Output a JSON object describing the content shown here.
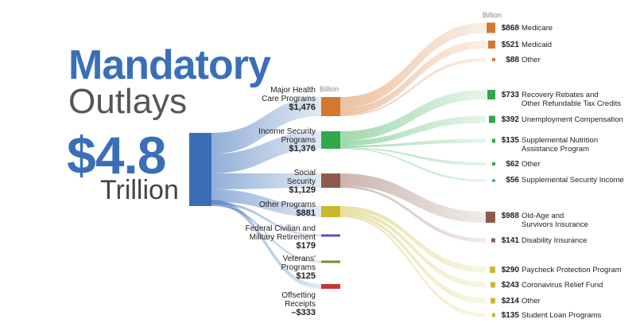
{
  "header": {
    "title_line1": "Mandatory",
    "title_line2": "Outlays",
    "total_value": "$4.8",
    "total_unit": "Trillion"
  },
  "unit_labels": {
    "middle": "Billion",
    "right": "Billion"
  },
  "colors": {
    "primary_blue": "#3a6fb8",
    "health": "#d5772e",
    "income": "#2fa84a",
    "social": "#8e5a4a",
    "other": "#c8b92e",
    "federal": "#6b48c2",
    "veterans": "#7a8a2a",
    "offsetting": "#cc3333"
  },
  "chart_data": {
    "type": "sankey",
    "title": "Mandatory Outlays",
    "total": {
      "value": "$4.8",
      "unit": "Trillion"
    },
    "categories": [
      {
        "name": "Major Health Care Programs",
        "label_lines": [
          "Major Health",
          "Care Programs"
        ],
        "amount": "$1,476",
        "value": 1476,
        "color": "#d5772e",
        "subitems": [
          {
            "amount": "$868",
            "value": 868,
            "name_lines": [
              "Medicare"
            ]
          },
          {
            "amount": "$521",
            "value": 521,
            "name_lines": [
              "Medicaid"
            ]
          },
          {
            "amount": "$88",
            "value": 88,
            "name_lines": [
              "Other"
            ]
          }
        ]
      },
      {
        "name": "Income Security Programs",
        "label_lines": [
          "Income Security",
          "Programs"
        ],
        "amount": "$1,376",
        "value": 1376,
        "color": "#2fa84a",
        "subitems": [
          {
            "amount": "$733",
            "value": 733,
            "name_lines": [
              "Recovery Rebates and",
              "Other Refundable Tax Credits"
            ]
          },
          {
            "amount": "$392",
            "value": 392,
            "name_lines": [
              "Unemployment Compensation"
            ]
          },
          {
            "amount": "$135",
            "value": 135,
            "name_lines": [
              "Supplemental Nutrition",
              "Assistance Program"
            ]
          },
          {
            "amount": "$62",
            "value": 62,
            "name_lines": [
              "Other"
            ]
          },
          {
            "amount": "$56",
            "value": 56,
            "name_lines": [
              "Supplemental Security Income"
            ]
          }
        ]
      },
      {
        "name": "Social Security",
        "label_lines": [
          "Social",
          "Security"
        ],
        "amount": "$1,129",
        "value": 1129,
        "color": "#8e5a4a",
        "subitems": [
          {
            "amount": "$988",
            "value": 988,
            "name_lines": [
              "Old-Age and",
              "Survivors Insurance"
            ]
          },
          {
            "amount": "$141",
            "value": 141,
            "name_lines": [
              "Disability Insurance"
            ]
          }
        ]
      },
      {
        "name": "Other Programs",
        "label_lines": [
          "Other Programs"
        ],
        "amount": "$881",
        "value": 881,
        "color": "#c8b92e",
        "subitems": [
          {
            "amount": "$290",
            "value": 290,
            "name_lines": [
              "Paycheck Protection Program"
            ]
          },
          {
            "amount": "$243",
            "value": 243,
            "name_lines": [
              "Coronavirus Relief Fund"
            ]
          },
          {
            "amount": "$214",
            "value": 214,
            "name_lines": [
              "Other"
            ]
          },
          {
            "amount": "$135",
            "value": 135,
            "name_lines": [
              "Student Loan Programs"
            ]
          }
        ]
      },
      {
        "name": "Federal Civilian and Military Retirement",
        "label_lines": [
          "Federal Civilian and",
          "Military Retirement"
        ],
        "amount": "$179",
        "value": 179,
        "color": "#6b48c2",
        "subitems": []
      },
      {
        "name": "Veterans' Programs",
        "label_lines": [
          "Veterans'",
          "Programs"
        ],
        "amount": "$125",
        "value": 125,
        "color": "#7a8a2a",
        "subitems": []
      },
      {
        "name": "Offsetting Receipts",
        "label_lines": [
          "Offsetting",
          "Receipts"
        ],
        "amount": "–$333",
        "value": -333,
        "color": "#cc3333",
        "subitems": []
      }
    ]
  }
}
